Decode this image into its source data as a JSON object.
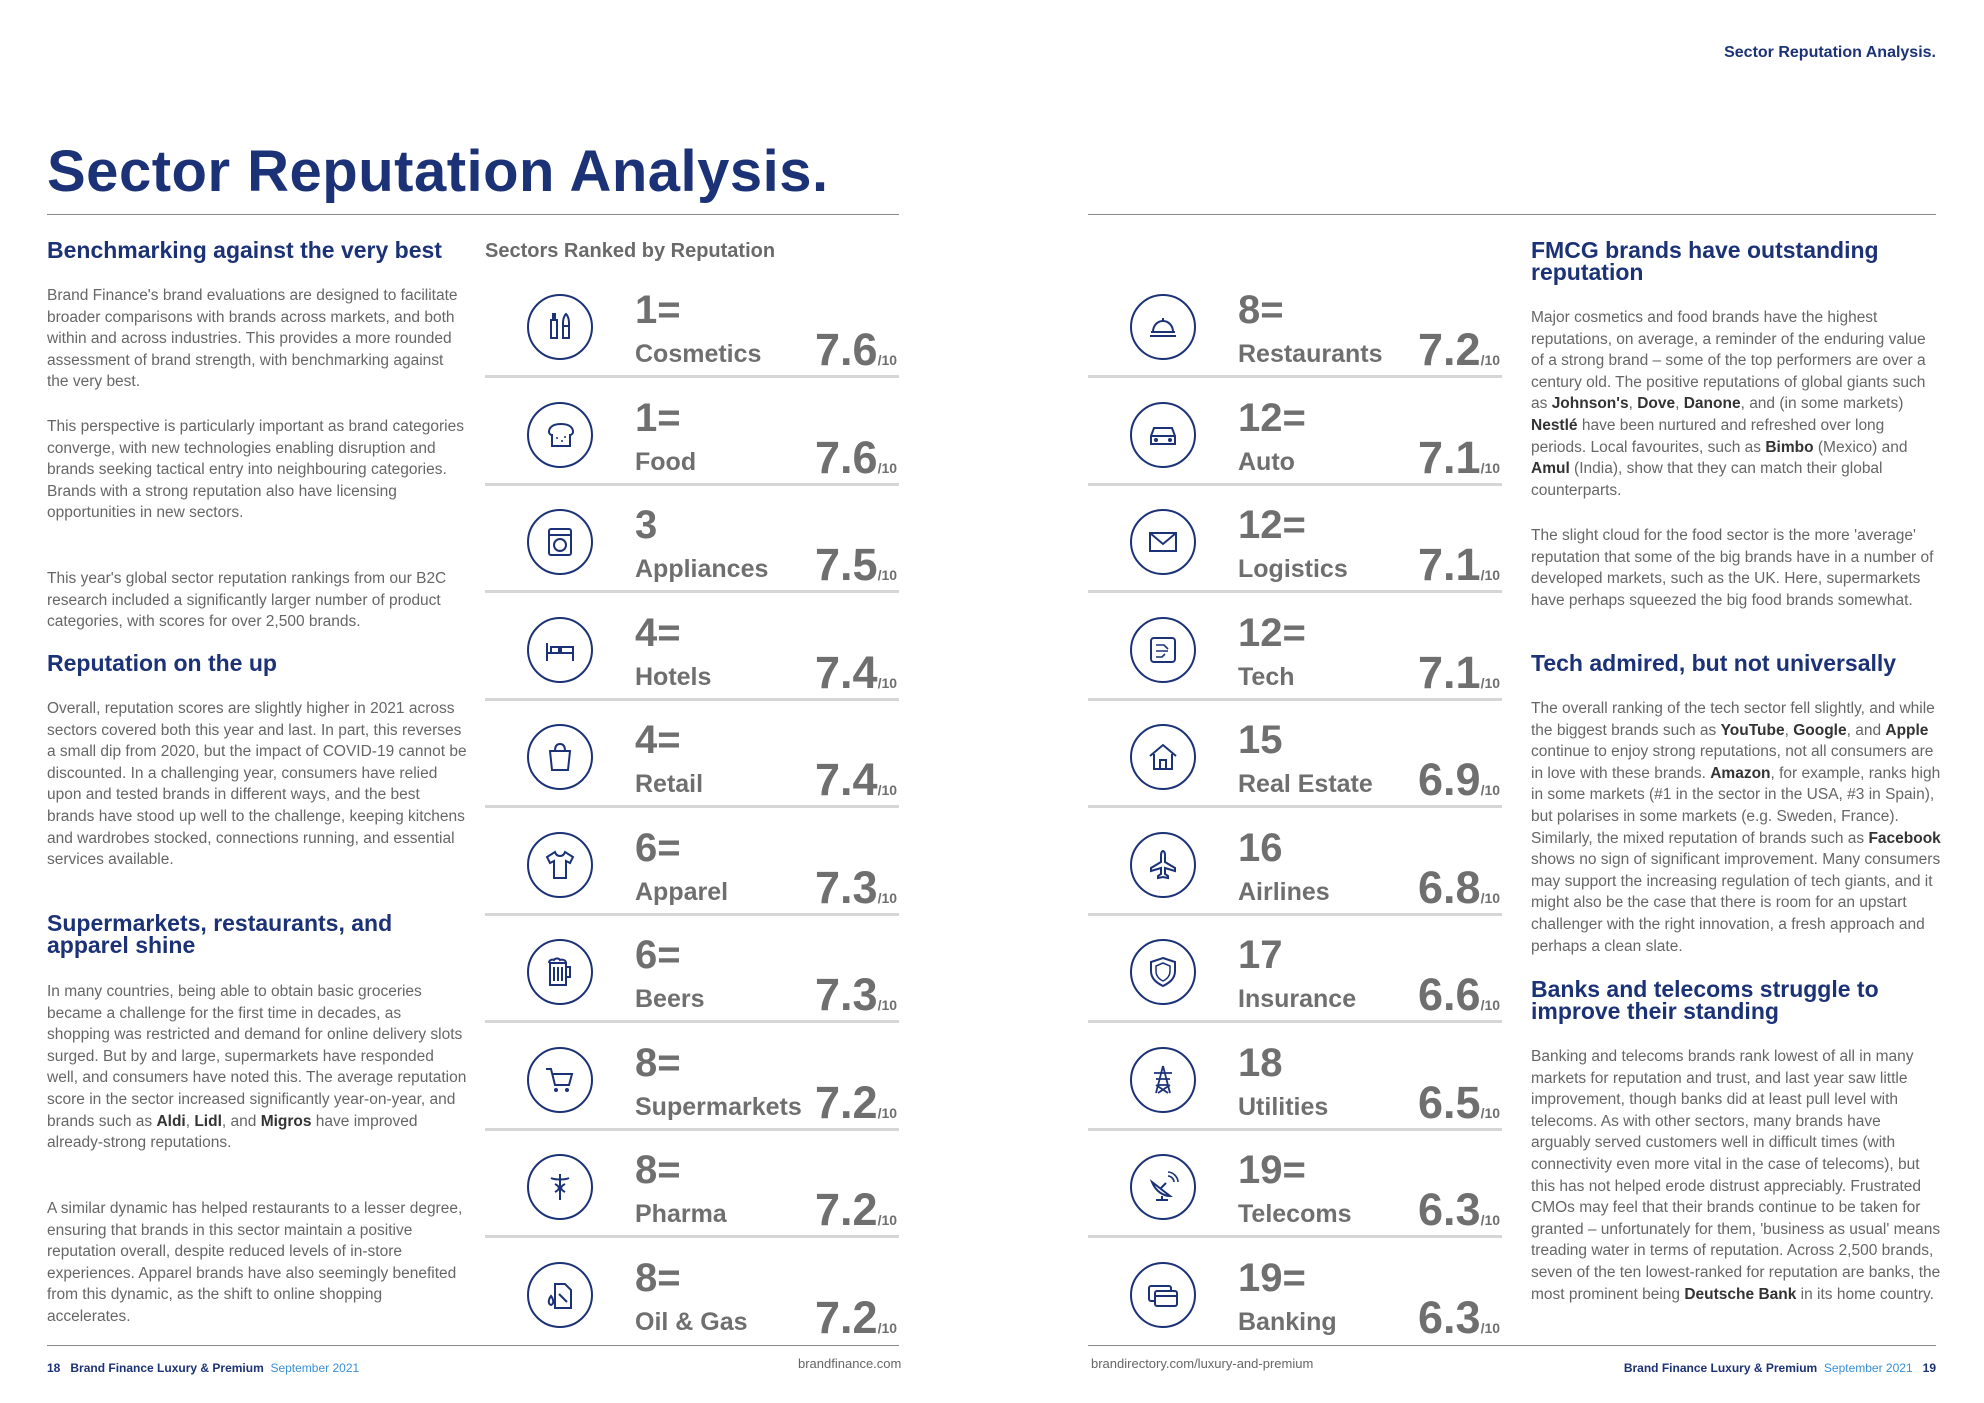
{
  "header": {
    "running_title": "Sector Reputation Analysis.",
    "page_title": "Sector Reputation Analysis."
  },
  "left_column": {
    "h_bench": "Benchmarking against the very best",
    "p_bench_1": "Brand Finance's brand evaluations are designed to facilitate broader comparisons with brands across markets, and both within and across industries. This provides a more rounded assessment of brand strength, with benchmarking against the very best.",
    "p_bench_2": "This perspective is particularly important as brand categories converge, with new technologies enabling disruption and brands seeking tactical entry into neighbouring categories. Brands with a strong reputation also have licensing opportunities in new sectors.",
    "p_bench_3": "This year's global sector reputation rankings from our B2C research included a significantly larger number of product categories, with scores for over 2,500 brands.",
    "h_up": "Reputation on the up",
    "p_up": "Overall, reputation scores are slightly higher in 2021 across sectors covered both this year and last. In part, this reverses a small dip from 2020, but the impact of COVID-19 cannot be discounted. In a challenging year, consumers have relied upon and tested brands in different ways, and the best brands have stood up well to the challenge, keeping kitchens and wardrobes stocked, connections running, and essential services available.",
    "h_super": "Supermarkets, restaurants, and apparel shine",
    "p_super_1_a": "In many countries, being able to obtain basic groceries became a challenge for the first time in decades, as shopping was restricted and demand for online delivery slots surged. But by and large, supermarkets have responded well, and consumers have noted this. The average reputation score in the sector increased significantly year-on-year, and brands such as ",
    "b_aldi": "Aldi",
    "sep_1": ", ",
    "b_lidl": "Lidl",
    "sep_2": ", and ",
    "b_migros": "Migros",
    "p_super_1_b": " have improved already-strong reputations.",
    "p_super_2": "A similar dynamic has helped restaurants to a lesser degree, ensuring that brands in this sector maintain a positive reputation overall, despite reduced levels of in-store experiences. Apparel brands have also seemingly benefited from this dynamic, as the shift to online shopping accelerates."
  },
  "ranking": {
    "heading": "Sectors Ranked by Reputation",
    "outof": "/10",
    "left": [
      {
        "rank": "1=",
        "name": "Cosmetics",
        "score": "7.6",
        "icon": "cosmetics-icon"
      },
      {
        "rank": "1=",
        "name": "Food",
        "score": "7.6",
        "icon": "bread-icon"
      },
      {
        "rank": "3",
        "name": "Appliances",
        "score": "7.5",
        "icon": "washing-machine-icon"
      },
      {
        "rank": "4=",
        "name": "Hotels",
        "score": "7.4",
        "icon": "bed-icon"
      },
      {
        "rank": "4=",
        "name": "Retail",
        "score": "7.4",
        "icon": "shopping-bag-icon"
      },
      {
        "rank": "6=",
        "name": "Apparel",
        "score": "7.3",
        "icon": "tshirt-icon"
      },
      {
        "rank": "6=",
        "name": "Beers",
        "score": "7.3",
        "icon": "beer-mug-icon"
      },
      {
        "rank": "8=",
        "name": "Supermarkets",
        "score": "7.2",
        "icon": "shopping-cart-icon"
      },
      {
        "rank": "8=",
        "name": "Pharma",
        "score": "7.2",
        "icon": "caduceus-icon"
      },
      {
        "rank": "8=",
        "name": "Oil & Gas",
        "score": "7.2",
        "icon": "fuel-can-icon"
      }
    ],
    "right": [
      {
        "rank": "8=",
        "name": "Restaurants",
        "score": "7.2",
        "icon": "cloche-icon"
      },
      {
        "rank": "12=",
        "name": "Auto",
        "score": "7.1",
        "icon": "car-icon"
      },
      {
        "rank": "12=",
        "name": "Logistics",
        "score": "7.1",
        "icon": "envelope-icon"
      },
      {
        "rank": "12=",
        "name": "Tech",
        "score": "7.1",
        "icon": "circuit-chip-icon"
      },
      {
        "rank": "15",
        "name": "Real Estate",
        "score": "6.9",
        "icon": "house-icon"
      },
      {
        "rank": "16",
        "name": "Airlines",
        "score": "6.8",
        "icon": "airplane-icon"
      },
      {
        "rank": "17",
        "name": "Insurance",
        "score": "6.6",
        "icon": "shield-icon"
      },
      {
        "rank": "18",
        "name": "Utilities",
        "score": "6.5",
        "icon": "power-pylon-icon"
      },
      {
        "rank": "19=",
        "name": "Telecoms",
        "score": "6.3",
        "icon": "satellite-dish-icon"
      },
      {
        "rank": "19=",
        "name": "Banking",
        "score": "6.3",
        "icon": "credit-card-icon"
      }
    ]
  },
  "right_column": {
    "h_fmcg": "FMCG brands have outstanding reputation",
    "p_fmcg_1_a": "Major cosmetics and food brands have the highest reputations, on average, a reminder of the enduring value of a strong brand – some of the top performers are over a century old. The positive reputations of global giants such as ",
    "b_johnsons": "Johnson's",
    "sep_a": ", ",
    "b_dove": "Dove",
    "sep_b": ", ",
    "b_danone": "Danone",
    "p_fmcg_1_b": ", and (in some markets) ",
    "b_nestle": "Nestlé",
    "p_fmcg_1_c": " have been nurtured and refreshed over long periods. Local favourites, such as ",
    "b_bimbo": "Bimbo",
    "p_fmcg_1_d": " (Mexico) and ",
    "b_amul": "Amul",
    "p_fmcg_1_e": " (India), show that they can match their global counterparts.",
    "p_fmcg_2": "The slight cloud for the food sector is the more 'average' reputation that some of the big brands have in a number of developed markets, such as the UK. Here, supermarkets have perhaps squeezed the big food brands somewhat.",
    "h_tech": "Tech admired, but not universally",
    "p_tech_a": "The overall ranking of the tech sector fell slightly, and while the biggest brands such as ",
    "b_youtube": "YouTube",
    "sep_c": ", ",
    "b_google": "Google",
    "sep_d": ", and ",
    "b_apple": "Apple",
    "p_tech_b": " continue to enjoy strong reputations, not all consumers are in love with these brands. ",
    "b_amazon": "Amazon",
    "p_tech_c": ", for example, ranks high in some markets (#1 in the sector in the USA, #3 in Spain), but polarises in some markets (e.g. Sweden, France). Similarly, the mixed reputation of brands such as ",
    "b_facebook": "Facebook",
    "p_tech_d": " shows no sign of significant improvement. Many consumers may support the increasing regulation of tech giants, and it might also be the case that there is room for an upstart challenger with the right innovation, a fresh approach and perhaps a clean slate.",
    "h_banks": "Banks and telecoms struggle to improve their standing",
    "p_banks_a": "Banking and telecoms brands rank lowest of all in many markets for reputation and trust, and last year saw little improvement, though banks did at least pull level with telecoms. As with other sectors, many brands have arguably served customers well in difficult times (with connectivity even more vital in the case of telecoms), but this has not helped erode distrust appreciably. Frustrated CMOs may feel that their brands continue to be taken for granted – unfortunately for them, 'business as usual' means treading water in terms of reputation. Across 2,500 brands, seven of the ten lowest-ranked for reputation are banks, the most prominent being ",
    "b_deutsche": "Deutsche Bank",
    "p_banks_b": " in its home country."
  },
  "footer": {
    "left_page": "18",
    "left_pub": "Brand Finance Luxury & Premium",
    "left_date": "September 2021",
    "left_url": "brandfinance.com",
    "right_url": "brandirectory.com/luxury-and-premium",
    "right_pub": "Brand Finance Luxury & Premium",
    "right_date": "September 2021",
    "right_page": "19"
  },
  "colors": {
    "navy": "#1c3276",
    "accent_blue": "#3a8fd6",
    "score_grey": "#6f6f6f"
  }
}
